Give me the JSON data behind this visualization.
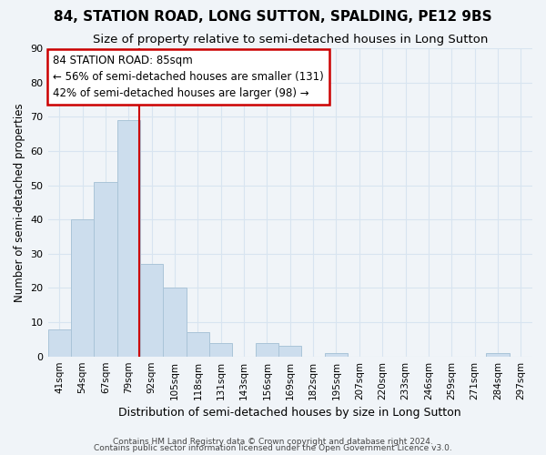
{
  "title": "84, STATION ROAD, LONG SUTTON, SPALDING, PE12 9BS",
  "subtitle": "Size of property relative to semi-detached houses in Long Sutton",
  "xlabel": "Distribution of semi-detached houses by size in Long Sutton",
  "ylabel": "Number of semi-detached properties",
  "categories": [
    "41sqm",
    "54sqm",
    "67sqm",
    "79sqm",
    "92sqm",
    "105sqm",
    "118sqm",
    "131sqm",
    "143sqm",
    "156sqm",
    "169sqm",
    "182sqm",
    "195sqm",
    "207sqm",
    "220sqm",
    "233sqm",
    "246sqm",
    "259sqm",
    "271sqm",
    "284sqm",
    "297sqm"
  ],
  "values": [
    8,
    40,
    51,
    69,
    27,
    20,
    7,
    4,
    0,
    4,
    3,
    0,
    1,
    0,
    0,
    0,
    0,
    0,
    0,
    1,
    0
  ],
  "bar_color": "#ccdded",
  "bar_edge_color": "#aac4d8",
  "red_line_x": 3.46,
  "annotation_line1": "84 STATION ROAD: 85sqm",
  "annotation_line2": "← 56% of semi-detached houses are smaller (131)",
  "annotation_line3": "42% of semi-detached houses are larger (98) →",
  "annotation_box_color": "#ffffff",
  "annotation_box_edge": "#cc0000",
  "ylim": [
    0,
    90
  ],
  "yticks": [
    0,
    10,
    20,
    30,
    40,
    50,
    60,
    70,
    80,
    90
  ],
  "footer1": "Contains HM Land Registry data © Crown copyright and database right 2024.",
  "footer2": "Contains public sector information licensed under the Open Government Licence v3.0.",
  "background_color": "#f0f4f8",
  "grid_color": "#d8e4f0",
  "title_fontsize": 11,
  "subtitle_fontsize": 9.5,
  "annotation_fontsize": 8.5
}
